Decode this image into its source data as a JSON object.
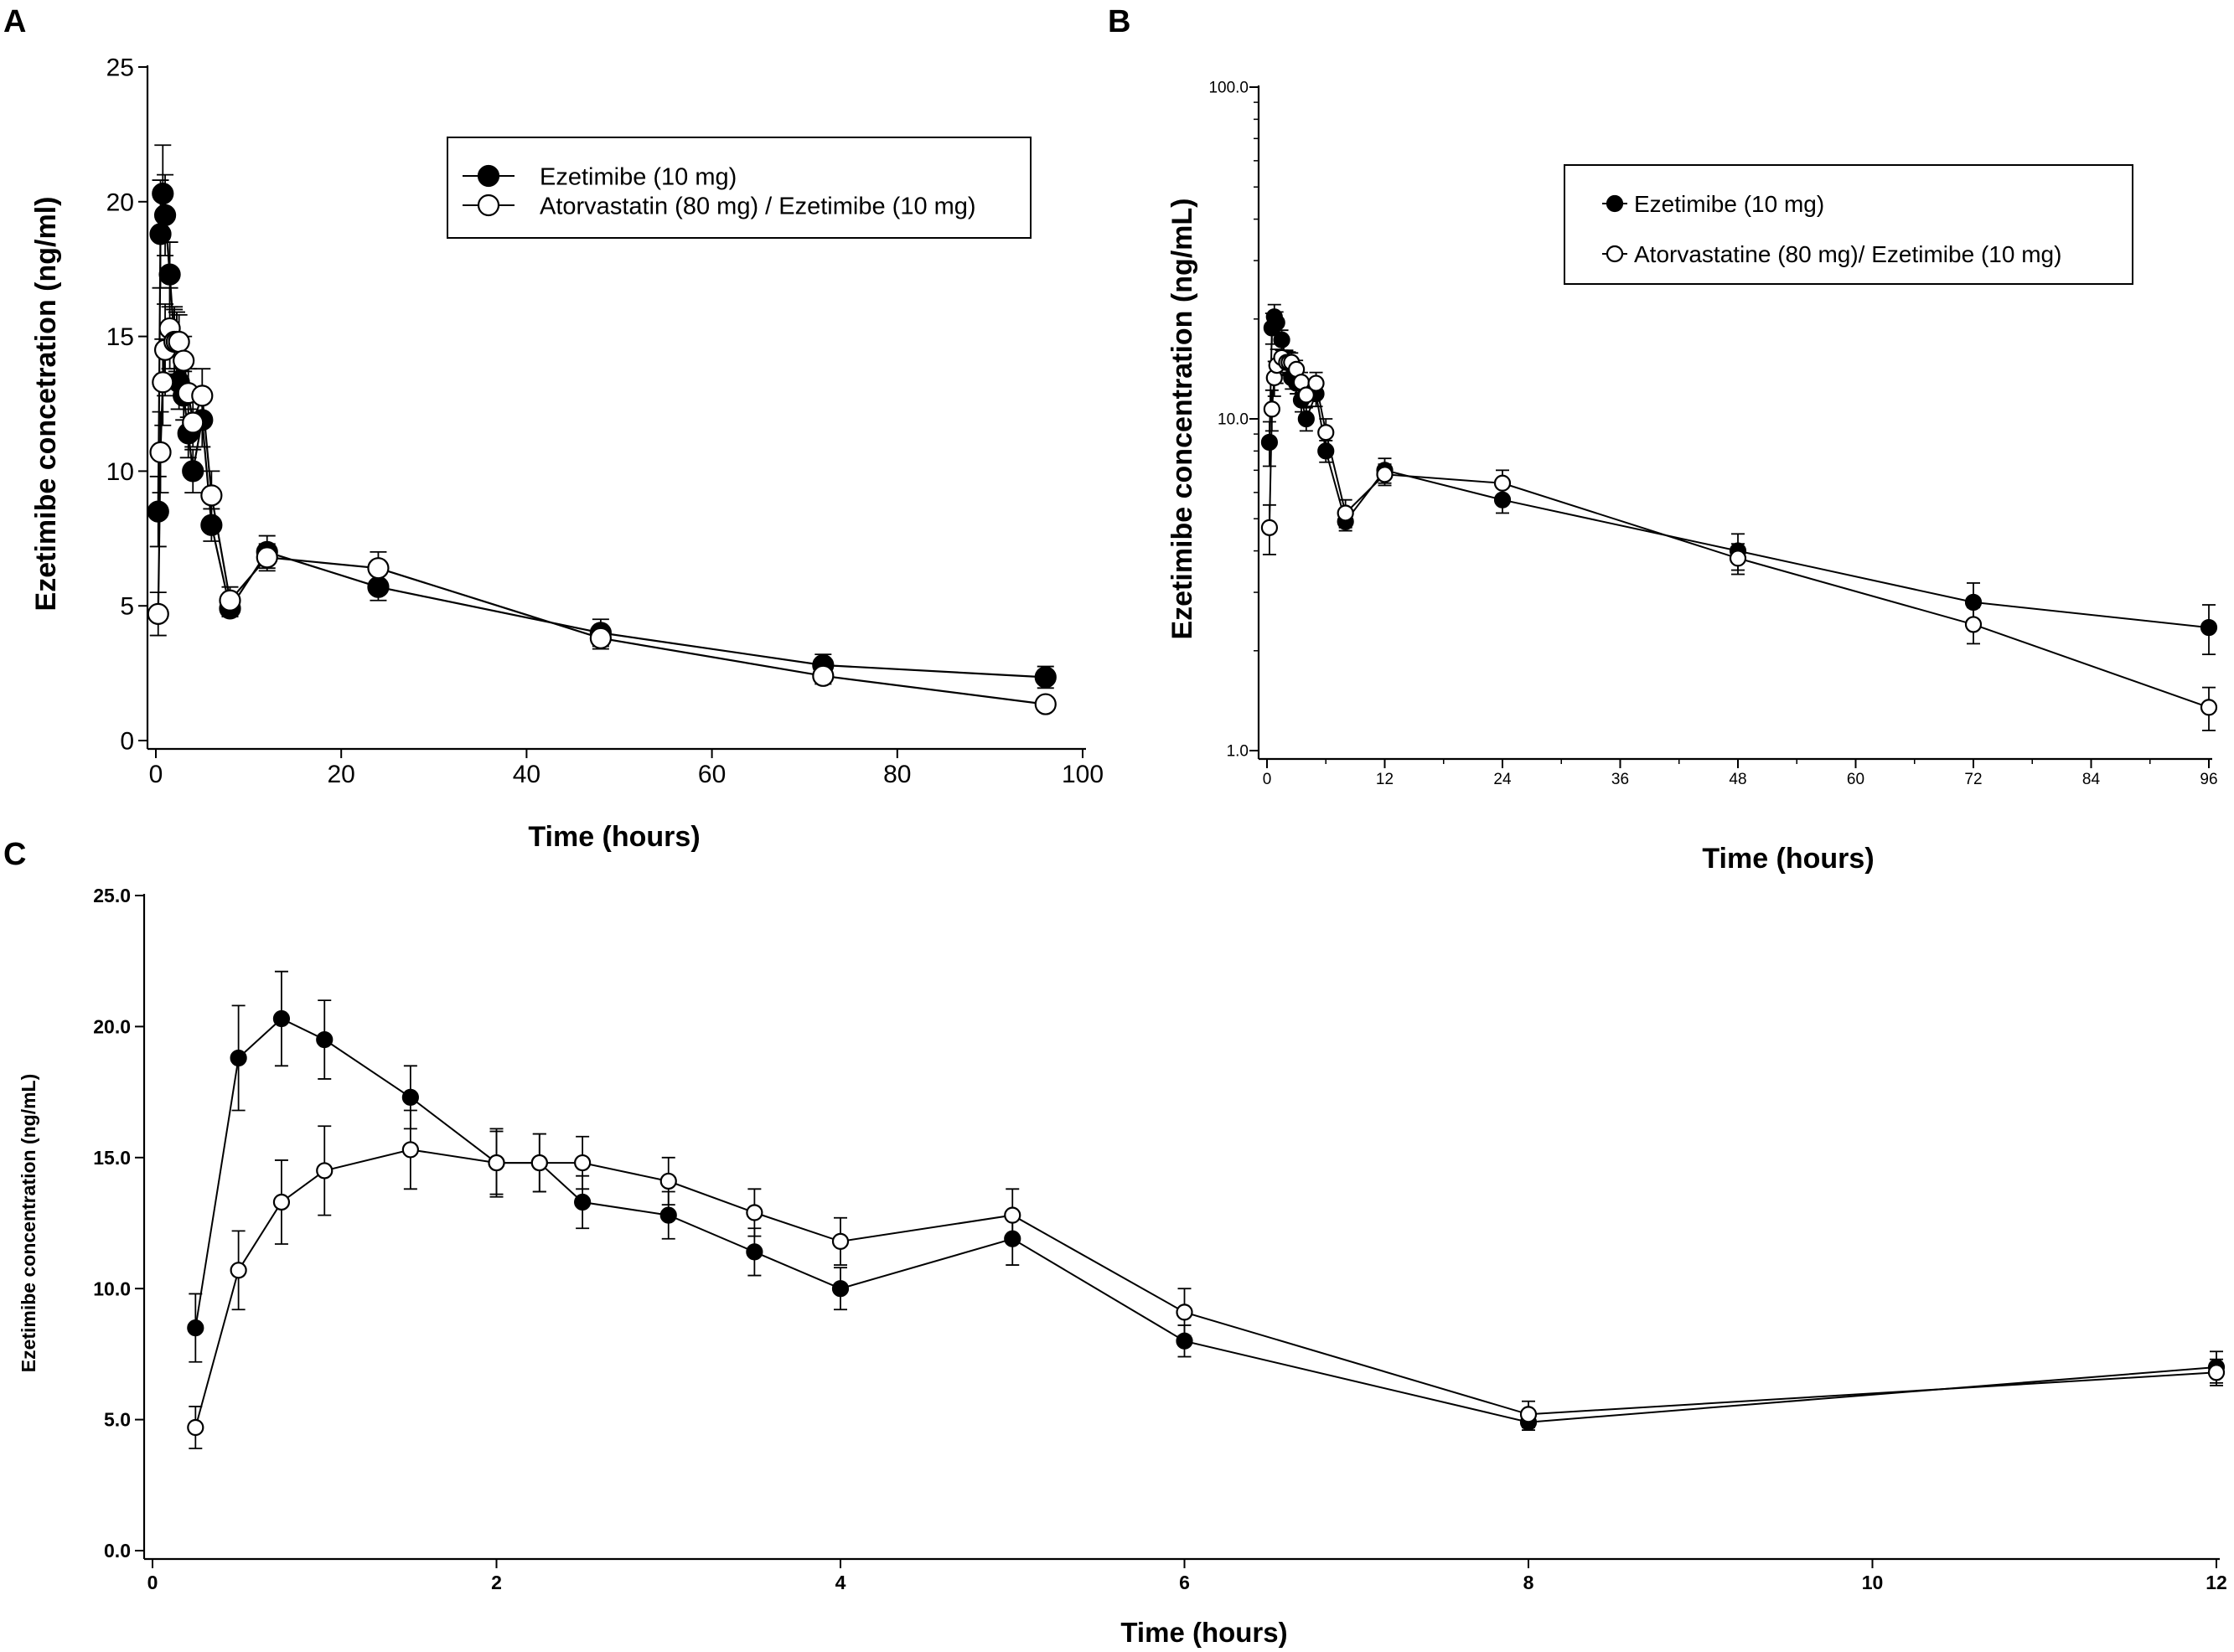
{
  "colors": {
    "ink": "#000000",
    "paper": "#ffffff"
  },
  "chart_data": [
    {
      "panel": "A",
      "type": "line",
      "yscale": "linear",
      "xlabel": "Time (hours)",
      "ylabel": "Ezetimibe concetration (ng/ml)",
      "xlim": [
        0,
        100
      ],
      "ylim": [
        0,
        25
      ],
      "xticks": [
        "0",
        "20",
        "40",
        "60",
        "80",
        "100"
      ],
      "yticks": [
        "0",
        "5",
        "10",
        "15",
        "20",
        "25"
      ],
      "legend_position": "top-right",
      "series": [
        {
          "name": "Ezetimibe (10 mg)",
          "marker": "filled-circle",
          "x": [
            0.25,
            0.5,
            0.75,
            1,
            1.5,
            2,
            2.25,
            2.5,
            3,
            3.5,
            4,
            5,
            6,
            8,
            12,
            24,
            48,
            72,
            96
          ],
          "y": [
            8.5,
            18.8,
            20.3,
            19.5,
            17.3,
            14.8,
            14.8,
            13.3,
            12.8,
            11.4,
            10.0,
            11.9,
            8.0,
            4.9,
            7.0,
            5.7,
            4.0,
            2.8,
            2.35
          ],
          "err": [
            1.3,
            2.0,
            1.8,
            1.5,
            1.2,
            1.3,
            1.1,
            1.0,
            0.9,
            0.9,
            0.8,
            1.0,
            0.6,
            0.3,
            0.6,
            0.5,
            0.5,
            0.4,
            0.4
          ]
        },
        {
          "name": "Atorvastatin (80 mg) / Ezetimibe (10 mg)",
          "marker": "open-circle",
          "x": [
            0.25,
            0.5,
            0.75,
            1,
            1.5,
            2,
            2.25,
            2.5,
            3,
            3.5,
            4,
            5,
            6,
            8,
            12,
            24,
            48,
            72,
            96
          ],
          "y": [
            4.7,
            10.7,
            13.3,
            14.5,
            15.3,
            14.8,
            14.8,
            14.8,
            14.1,
            12.9,
            11.8,
            12.8,
            9.1,
            5.2,
            6.8,
            6.4,
            3.8,
            2.4,
            1.35
          ],
          "err": [
            0.8,
            1.5,
            1.6,
            1.7,
            1.5,
            1.2,
            1.1,
            1.0,
            0.9,
            0.9,
            0.9,
            1.0,
            0.9,
            0.5,
            0.5,
            0.6,
            0.4,
            0.3,
            0.2
          ]
        }
      ]
    },
    {
      "panel": "B",
      "type": "line",
      "yscale": "log",
      "xlabel": "Time (hours)",
      "ylabel": "Ezetimibe concentration (ng/mL)",
      "xlim": [
        0,
        96
      ],
      "ylim": [
        1,
        100
      ],
      "xticks": [
        "0",
        "12",
        "24",
        "36",
        "48",
        "60",
        "72",
        "84",
        "96"
      ],
      "yticks": [
        "1.0",
        "10.0",
        "100.0"
      ],
      "legend_position": "top-right",
      "series": [
        {
          "name": "Ezetimibe (10 mg)",
          "marker": "filled-circle",
          "x": [
            0.25,
            0.5,
            0.75,
            1,
            1.5,
            2,
            2.25,
            2.5,
            3,
            3.5,
            4,
            5,
            6,
            8,
            12,
            24,
            48,
            72,
            96
          ],
          "y": [
            8.5,
            18.8,
            20.3,
            19.5,
            17.3,
            14.8,
            14.8,
            13.3,
            12.8,
            11.4,
            10.0,
            11.9,
            8.0,
            4.9,
            7.0,
            5.7,
            4.0,
            2.8,
            2.35
          ],
          "err": [
            1.3,
            2.0,
            1.8,
            1.5,
            1.2,
            1.3,
            1.1,
            1.0,
            0.9,
            0.9,
            0.8,
            1.0,
            0.6,
            0.3,
            0.6,
            0.5,
            0.5,
            0.4,
            0.4
          ]
        },
        {
          "name": "Atorvastatine (80 mg)/ Ezetimibe (10 mg)",
          "marker": "open-circle",
          "x": [
            0.25,
            0.5,
            0.75,
            1,
            1.5,
            2,
            2.25,
            2.5,
            3,
            3.5,
            4,
            5,
            6,
            8,
            12,
            24,
            48,
            72,
            96
          ],
          "y": [
            4.7,
            10.7,
            13.3,
            14.5,
            15.3,
            14.8,
            14.8,
            14.8,
            14.1,
            12.9,
            11.8,
            12.8,
            9.1,
            5.2,
            6.8,
            6.4,
            3.8,
            2.4,
            1.35
          ],
          "err": [
            0.8,
            1.5,
            1.6,
            1.7,
            1.5,
            1.2,
            1.1,
            1.0,
            0.9,
            0.9,
            0.9,
            1.0,
            0.9,
            0.5,
            0.5,
            0.6,
            0.4,
            0.3,
            0.2
          ]
        }
      ]
    },
    {
      "panel": "C",
      "type": "line",
      "yscale": "linear",
      "xlabel": "Time (hours)",
      "ylabel": "Ezetimibe concentration (ng/mL)",
      "xlim": [
        0,
        12
      ],
      "ylim": [
        0,
        25
      ],
      "xticks": [
        "0",
        "2",
        "4",
        "6",
        "8",
        "10",
        "12"
      ],
      "yticks": [
        "0.0",
        "5.0",
        "10.0",
        "15.0",
        "20.0",
        "25.0"
      ],
      "legend_position": "none",
      "series": [
        {
          "name": "Ezetimibe (10 mg)",
          "marker": "filled-circle",
          "x": [
            0.25,
            0.5,
            0.75,
            1,
            1.5,
            2,
            2.25,
            2.5,
            3,
            3.5,
            4,
            5,
            6,
            8,
            12
          ],
          "y": [
            8.5,
            18.8,
            20.3,
            19.5,
            17.3,
            14.8,
            14.8,
            13.3,
            12.8,
            11.4,
            10.0,
            11.9,
            8.0,
            4.9,
            7.0
          ],
          "err": [
            1.3,
            2.0,
            1.8,
            1.5,
            1.2,
            1.3,
            1.1,
            1.0,
            0.9,
            0.9,
            0.8,
            1.0,
            0.6,
            0.3,
            0.6
          ]
        },
        {
          "name": "Atorvastatin (80 mg) / Ezetimibe (10 mg)",
          "marker": "open-circle",
          "x": [
            0.25,
            0.5,
            0.75,
            1,
            1.5,
            2,
            2.25,
            2.5,
            3,
            3.5,
            4,
            5,
            6,
            8,
            12
          ],
          "y": [
            4.7,
            10.7,
            13.3,
            14.5,
            15.3,
            14.8,
            14.8,
            14.8,
            14.1,
            12.9,
            11.8,
            12.8,
            9.1,
            5.2,
            6.8
          ],
          "err": [
            0.8,
            1.5,
            1.6,
            1.7,
            1.5,
            1.2,
            1.1,
            1.0,
            0.9,
            0.9,
            0.9,
            1.0,
            0.9,
            0.5,
            0.5
          ]
        }
      ]
    }
  ]
}
